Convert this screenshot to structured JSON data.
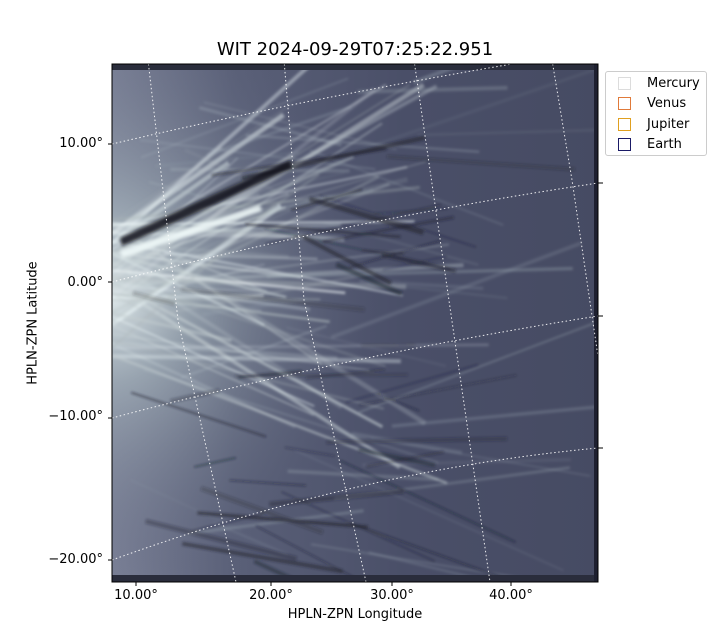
{
  "title": "WIT 2024-09-29T07:25:22.951",
  "x_axis": {
    "label": "HPLN-ZPN Longitude",
    "ticks": [
      "10.00°",
      "20.00°",
      "30.00°",
      "40.00°"
    ]
  },
  "y_axis": {
    "label": "HPLN-ZPN Latitude",
    "ticks": [
      "10.00°",
      "0.00°",
      "−10.00°",
      "−20.00°"
    ]
  },
  "legend": {
    "placement": "outside-right-top",
    "items": [
      {
        "label": "Mercury",
        "color": "#dcdcdc"
      },
      {
        "label": "Venus",
        "color": "#e07a3a"
      },
      {
        "label": "Jupiter",
        "color": "#e0a020"
      },
      {
        "label": "Earth",
        "color": "#1a1a66"
      }
    ]
  },
  "image": {
    "description_colormap": "bone",
    "grid": true
  }
}
